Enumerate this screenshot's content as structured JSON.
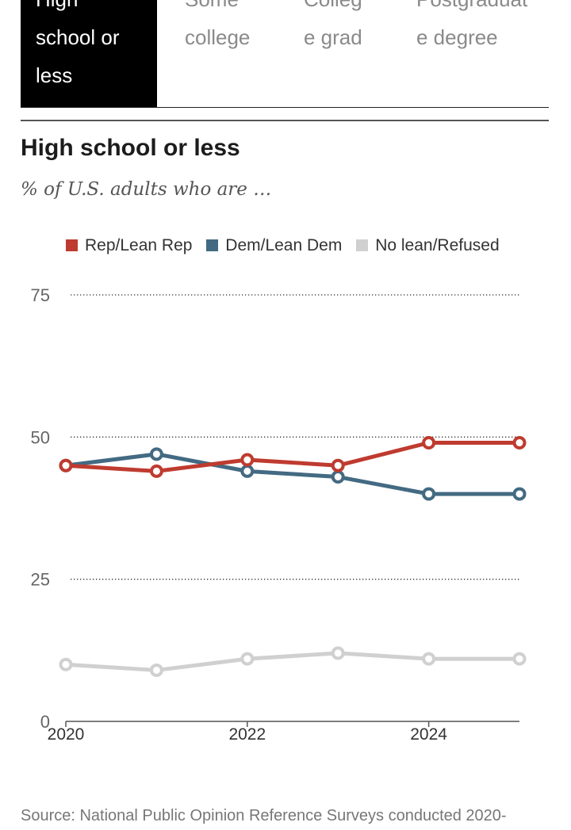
{
  "tabs": [
    {
      "label": "High school or less",
      "active": true
    },
    {
      "label": "Some college",
      "active": false
    },
    {
      "label": "College grad",
      "active": false
    },
    {
      "label": "Postgraduate degree",
      "active": false
    }
  ],
  "source": "Source: National Public Opinion Reference Surveys conducted 2020-",
  "chart_data": {
    "type": "line",
    "title": "High school or less",
    "subtitle": "% of U.S. adults who are …",
    "x": [
      2020,
      2021,
      2022,
      2023,
      2024,
      2025
    ],
    "xticks": [
      "2020",
      "2022",
      "2024"
    ],
    "yticks": [
      0,
      25,
      50,
      75
    ],
    "ylim": [
      0,
      75
    ],
    "grid": "dotted horizontal",
    "legend_position": "top",
    "series": [
      {
        "name": "Rep/Lean Rep",
        "color": "#bf3b2f",
        "values": [
          45,
          44,
          46,
          45,
          49,
          49
        ]
      },
      {
        "name": "Dem/Lean Dem",
        "color": "#436a82",
        "values": [
          45,
          47,
          44,
          43,
          40,
          40
        ]
      },
      {
        "name": "No lean/Refused",
        "color": "#d0d0d0",
        "values": [
          10,
          9,
          11,
          12,
          11,
          11
        ]
      }
    ]
  }
}
